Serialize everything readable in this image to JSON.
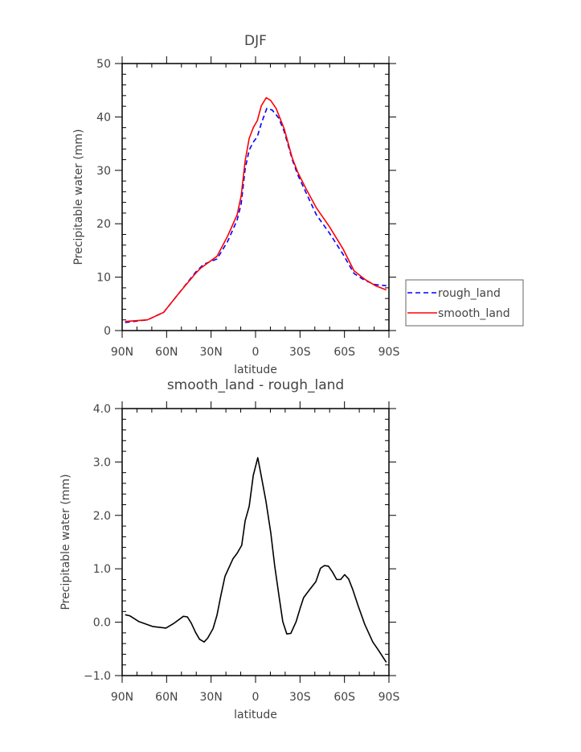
{
  "chart_data": [
    {
      "type": "line",
      "title": "DJF",
      "xlabel": "latitude",
      "ylabel": "Precipitable water (mm)",
      "xlim": [
        90,
        -90
      ],
      "ylim": [
        0,
        50
      ],
      "x_ticks": [
        90,
        60,
        30,
        0,
        -30,
        -60,
        -90
      ],
      "x_tick_labels": [
        "90N",
        "60N",
        "30N",
        "0",
        "30S",
        "60S",
        "90S"
      ],
      "y_ticks": [
        0,
        10,
        20,
        30,
        40,
        50
      ],
      "y_tick_labels": [
        "0",
        "10",
        "20",
        "30",
        "40",
        "50"
      ],
      "grid": false,
      "legend_placement": "right-outside",
      "series": [
        {
          "name": "rough_land",
          "color": "#0000ff",
          "style": "dashed",
          "x": [
            88,
            73,
            62,
            51.4,
            40.5,
            35.1,
            26,
            18.8,
            12.4,
            9.7,
            7,
            4.3,
            1.5,
            -1.2,
            -3.9,
            -7.6,
            -11.2,
            -15.6,
            -19.3,
            -24.8,
            -28.4,
            -33.8,
            -41,
            -50,
            -59.2,
            -66.4,
            -73.7,
            -80.9,
            -88.2
          ],
          "y": [
            1.5,
            2.0,
            3.4,
            7.1,
            10.9,
            12.4,
            13.4,
            16.7,
            20.7,
            23.7,
            30.3,
            33.8,
            35.3,
            36.3,
            38.8,
            41.6,
            41.3,
            39.8,
            37.3,
            32.0,
            29.2,
            26.0,
            21.7,
            18.2,
            14.2,
            10.7,
            9.4,
            8.6,
            8.4
          ]
        },
        {
          "name": "smooth_land",
          "color": "#ff0000",
          "style": "solid",
          "x": [
            88,
            73,
            62,
            51.4,
            40.5,
            37,
            26,
            18.8,
            12.4,
            9.7,
            7,
            4.3,
            1.5,
            -1.2,
            -3.9,
            -7.2,
            -10.2,
            -13.9,
            -19.3,
            -24.8,
            -28.4,
            -33.8,
            -41,
            -50,
            -59.2,
            -66.4,
            -73.7,
            -80.9,
            -88.2
          ],
          "y": [
            1.7,
            2.0,
            3.4,
            7.1,
            10.7,
            11.7,
            13.9,
            17.7,
            21.7,
            25.2,
            31.8,
            36.0,
            38.0,
            39.3,
            42.1,
            43.6,
            43.1,
            41.6,
            37.8,
            32.3,
            29.7,
            26.7,
            23.0,
            19.4,
            15.2,
            11.2,
            9.6,
            8.4,
            7.6
          ]
        }
      ]
    },
    {
      "type": "line",
      "title": "smooth_land - rough_land",
      "xlabel": "latitude",
      "ylabel": "Precipitable water (mm)",
      "xlim": [
        90,
        -90
      ],
      "ylim": [
        -1.0,
        4.0
      ],
      "x_ticks": [
        90,
        60,
        30,
        0,
        -30,
        -60,
        -90
      ],
      "x_tick_labels": [
        "90N",
        "60N",
        "30N",
        "0",
        "30S",
        "60S",
        "90S"
      ],
      "y_ticks": [
        -1,
        0,
        1,
        2,
        3,
        4
      ],
      "y_tick_labels": [
        "−1.0",
        "0.0",
        "1.0",
        "2.0",
        "3.0",
        "4.0"
      ],
      "grid": false,
      "series": [
        {
          "color": "#000000",
          "style": "solid",
          "x": [
            88,
            84.9,
            78.6,
            69.5,
            60.5,
            55,
            48.7,
            46,
            43.3,
            40.5,
            37.8,
            34.7,
            32.3,
            28.7,
            26,
            23.3,
            20.6,
            15.2,
            12.4,
            9.3,
            7,
            4.3,
            1.5,
            -1.5,
            -3.9,
            -7,
            -10.3,
            -12.9,
            -15.7,
            -18.4,
            -21.1,
            -23.8,
            -27.4,
            -30.1,
            -32.4,
            -36.5,
            -40.7,
            -43.8,
            -46.5,
            -49.2,
            -51.9,
            -54.7,
            -57.4,
            -60.1,
            -62.8,
            -65.6,
            -69.2,
            -73.7,
            -79.1,
            -82.8,
            -88.2
          ],
          "y": [
            0.14,
            0.12,
            0.01,
            -0.08,
            -0.11,
            -0.02,
            0.11,
            0.1,
            -0.02,
            -0.19,
            -0.32,
            -0.37,
            -0.3,
            -0.12,
            0.13,
            0.51,
            0.86,
            1.19,
            1.29,
            1.44,
            1.9,
            2.17,
            2.75,
            3.08,
            2.73,
            2.27,
            1.67,
            1.06,
            0.51,
            0.01,
            -0.22,
            -0.21,
            0.01,
            0.26,
            0.46,
            0.61,
            0.76,
            1.01,
            1.06,
            1.05,
            0.94,
            0.8,
            0.8,
            0.89,
            0.81,
            0.61,
            0.31,
            -0.04,
            -0.37,
            -0.52,
            -0.75
          ]
        }
      ]
    }
  ]
}
